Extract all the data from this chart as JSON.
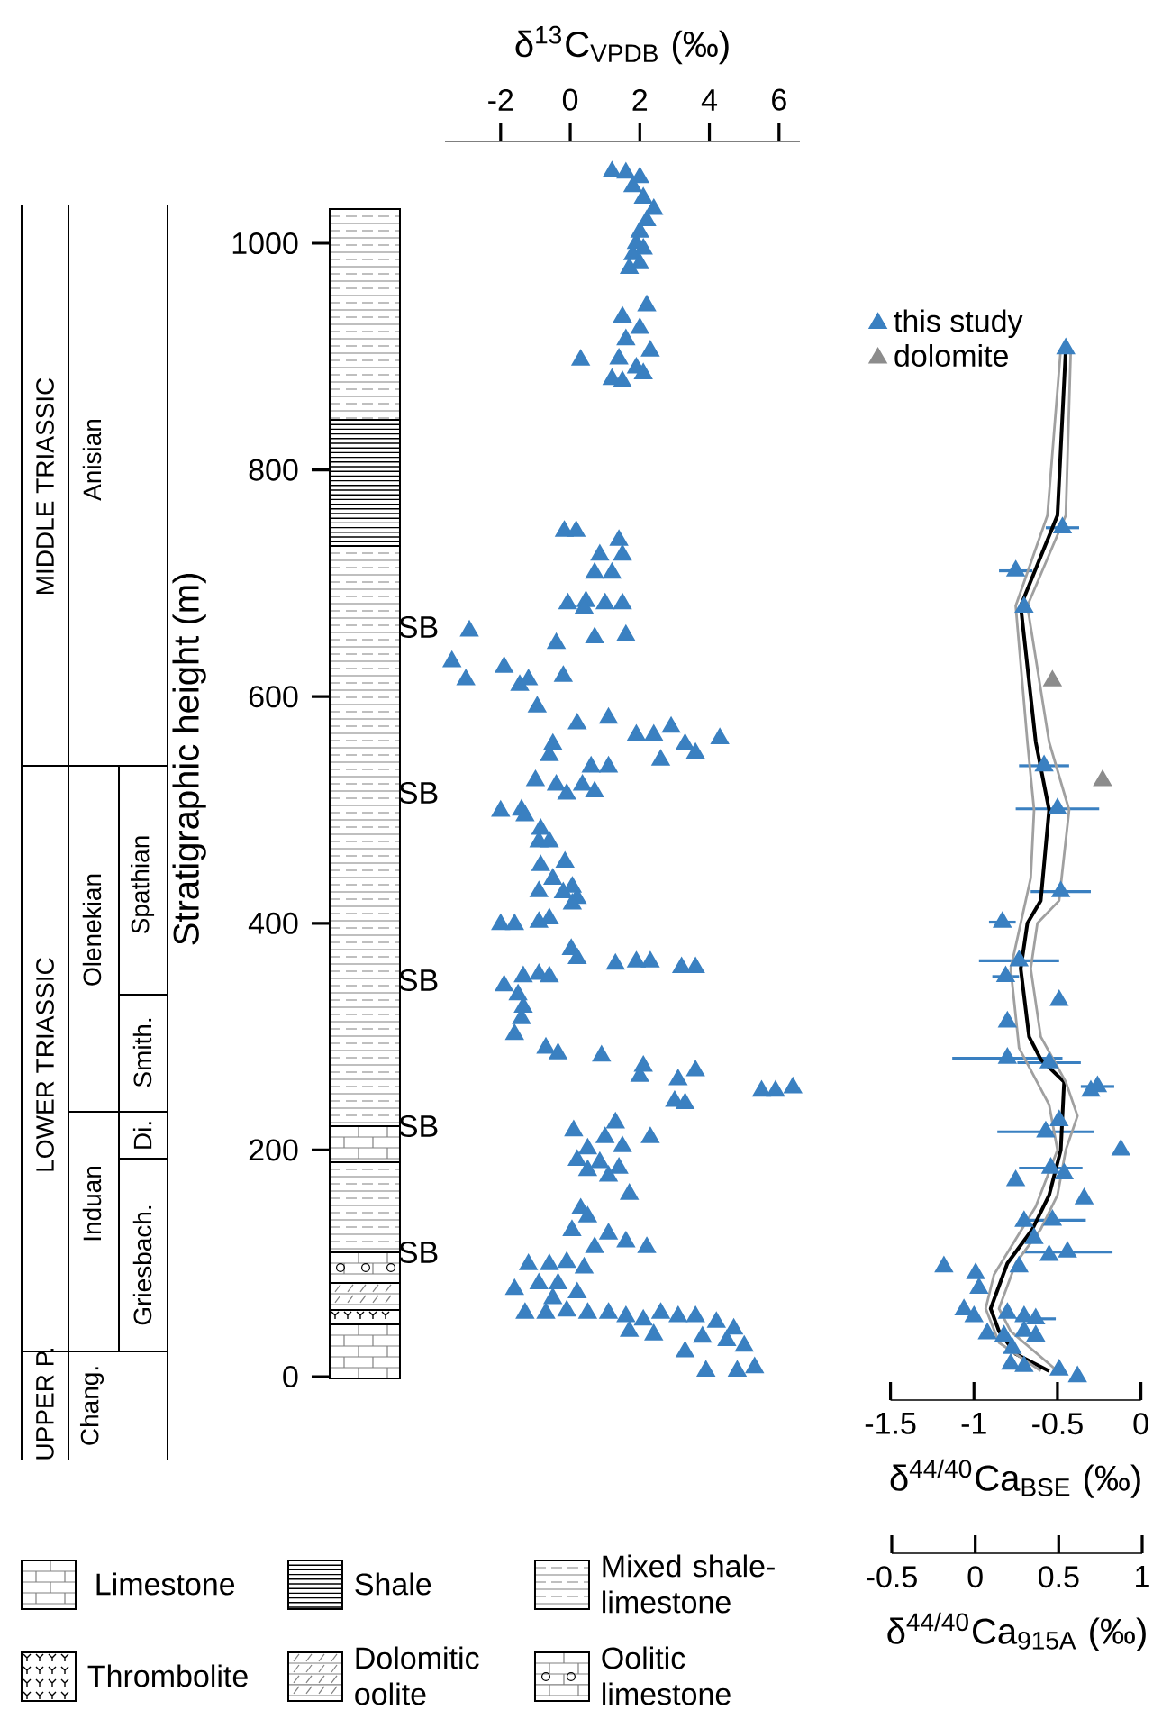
{
  "chart_data": [
    {
      "type": "scatter",
      "xlabel": "δ$^{13}$C$_{VPDB}$ (‰)",
      "ylabel": "Stratigraphic height (m)",
      "xlim": [
        -3.6,
        6.6
      ],
      "xticks": [
        -2,
        0,
        2,
        4,
        6
      ],
      "ylim": [
        0,
        1090
      ],
      "yticks": [
        0,
        200,
        400,
        600,
        800,
        1000
      ],
      "marker": "triangle",
      "series": [
        {
          "color": "#3a80c1",
          "x": [
            1.2,
            1.6,
            2.0,
            1.8,
            2.1,
            2.4,
            2.2,
            2.0,
            1.9,
            2.1,
            1.8,
            2.0,
            1.7,
            2.2,
            1.5,
            2.0,
            1.6,
            2.3,
            1.4,
            0.3,
            1.9,
            1.2,
            2.1,
            1.5,
            -0.17,
            0.17,
            1.4,
            0.85,
            1.5,
            0.7,
            1.2,
            -0.07,
            0.45,
            1.0,
            1.5,
            0.4,
            -0.4,
            0.7,
            1.6,
            -2.9,
            -3.4,
            -3.0,
            -1.9,
            -1.45,
            -1.2,
            -0.95,
            -0.2,
            1.1,
            0.2,
            1.9,
            2.4,
            2.9,
            3.3,
            4.3,
            -0.5,
            3.6,
            2.6,
            -0.6,
            -1.0,
            -0.4,
            0.35,
            0.6,
            1.1,
            -0.1,
            0.7,
            -2.0,
            -1.4,
            -1.3,
            -0.85,
            -0.9,
            -0.6,
            -0.85,
            -0.15,
            -0.5,
            0.06,
            -0.9,
            -0.2,
            0.2,
            0.06,
            -2.0,
            -1.6,
            -0.9,
            -0.6,
            0.03,
            0.2,
            1.3,
            1.9,
            2.3,
            3.2,
            3.6,
            -1.9,
            -1.35,
            -0.9,
            -0.6,
            -1.5,
            -1.35,
            -1.4,
            -1.6,
            -0.7,
            -0.35,
            0.9,
            2.1,
            2.0,
            3.1,
            3.6,
            5.5,
            5.9,
            6.4,
            3.0,
            3.3,
            1.3,
            2.3,
            0.1,
            1.0,
            1.5,
            0.5,
            0.2,
            0.85,
            1.4,
            0.5,
            1.1,
            1.7,
            0.3,
            0.5,
            0.05,
            1.1,
            1.6,
            2.2,
            0.7,
            -1.2,
            -0.6,
            -0.1,
            0.4,
            -1.6,
            -0.9,
            -0.35,
            -0.5,
            0.2,
            -1.3,
            -0.7,
            -0.1,
            0.5,
            1.1,
            1.6,
            2.1,
            2.6,
            3.1,
            3.6,
            4.2,
            4.7,
            3.8,
            4.5,
            5.0,
            5.3,
            3.9,
            4.8,
            3.3,
            1.7,
            2.4
          ],
          "values": [
            1063,
            1062,
            1058,
            1050,
            1040,
            1030,
            1020,
            1010,
            1000,
            995,
            990,
            982,
            978,
            945,
            935,
            925,
            915,
            905,
            898,
            897,
            890,
            880,
            885,
            878,
            746,
            746,
            738,
            725,
            725,
            709,
            709,
            682,
            684,
            682,
            682,
            678,
            647,
            652,
            654,
            658,
            631,
            615,
            626,
            610,
            615,
            591,
            618,
            581,
            576,
            566,
            566,
            573,
            558,
            563,
            558,
            550,
            544,
            548,
            526,
            522,
            522,
            538,
            538,
            514,
            516,
            499,
            500,
            495,
            483,
            472,
            472,
            451,
            454,
            439,
            432,
            428,
            427,
            422,
            417,
            399,
            399,
            401,
            404,
            377,
            369,
            364,
            366,
            366,
            361,
            361,
            345,
            353,
            355,
            353,
            337,
            326,
            316,
            302,
            290,
            285,
            283,
            274,
            265,
            262,
            270,
            252,
            252,
            255,
            243,
            241,
            224,
            211,
            217,
            211,
            203,
            201,
            191,
            189,
            184,
            182,
            177,
            161,
            148,
            141,
            129,
            126,
            119,
            114,
            114,
            99,
            99,
            101,
            96,
            77,
            82,
            82,
            69,
            74,
            56,
            56,
            58,
            56,
            56,
            53,
            50,
            56,
            53,
            53,
            48,
            42,
            35,
            32,
            27,
            8,
            5,
            5,
            22,
            40,
            37
          ]
        }
      ],
      "annotations": [
        "MIDDLE TRIASSIC",
        "LOWER TRIASSIC",
        "UPPER P.",
        "Anisian",
        "Olenekian",
        "Induan",
        "Chang.",
        "Spathian",
        "Smith.",
        "Di.",
        "Griesbach.",
        "Limestone",
        "Shale",
        "Mixed shale-limestone",
        "Thrombolite",
        "Dolomitic oolite",
        "Oolitic limestone",
        "SB",
        "SB",
        "SB",
        "SB",
        "SB"
      ]
    },
    {
      "type": "scatter",
      "xlabel": "δ$^{44/40}$Ca$_{BSE}$ (‰)",
      "x2label": "δ$^{44/40}$Ca$_{915A}$ (‰)",
      "xlim": [
        -1.5,
        0
      ],
      "xticks": [
        -1.5,
        -1,
        -0.5,
        0
      ],
      "x2lim": [
        -0.5,
        1
      ],
      "x2ticks": [
        -0.5,
        0,
        0.5,
        1
      ],
      "ylim": [
        0,
        1000
      ],
      "yticks": [
        0,
        200,
        400,
        600,
        800,
        1000
      ],
      "tick_labels": "x",
      "legend": "top left",
      "marker": "triangle",
      "series": [
        {
          "name": "this study",
          "color": "#3a80c1",
          "x": [
            -0.45,
            -0.47,
            -0.75,
            -0.7,
            -0.58,
            -0.5,
            -0.48,
            -0.83,
            -0.73,
            -0.81,
            -0.49,
            -0.8,
            -0.8,
            -0.55,
            -0.26,
            -0.3,
            -0.49,
            -0.57,
            -0.12,
            -0.54,
            -0.46,
            -0.75,
            -0.34,
            -0.53,
            -0.7,
            -0.64,
            -0.55,
            -0.44,
            -0.73,
            -1.18,
            -0.99,
            -0.97,
            -1.06,
            -1.0,
            -0.92,
            -0.8,
            -0.7,
            -0.63,
            -0.82,
            -0.7,
            -0.63,
            -0.77,
            -0.78,
            -0.7,
            -0.49,
            -0.38
          ],
          "values": [
            907,
            749,
            711,
            679,
            539,
            501,
            428,
            401,
            367,
            353,
            332,
            313,
            281,
            277,
            256,
            252,
            226,
            216,
            200,
            184,
            179,
            173,
            157,
            138,
            137,
            122,
            107,
            110,
            97,
            97,
            91,
            78,
            59,
            53,
            38,
            56,
            53,
            51,
            36,
            40,
            36,
            25,
            11,
            9,
            6,
            0
          ],
          "xerrors": [
            0.03,
            0.1,
            0.1,
            null,
            0.15,
            0.25,
            0.18,
            0.08,
            0.24,
            0.08,
            null,
            null,
            0.33,
            0.19,
            0.1,
            null,
            null,
            0.29,
            null,
            0.19,
            null,
            null,
            null,
            0.2,
            null,
            null,
            null,
            0.27,
            null,
            null,
            null,
            null,
            null,
            null,
            null,
            null,
            null,
            0.12,
            null,
            null,
            null,
            null,
            null,
            null,
            null,
            null
          ]
        },
        {
          "name": "dolomite",
          "color": "#8c8c8c",
          "x": [
            -0.53,
            -0.23
          ],
          "values": [
            614,
            526
          ]
        },
        {
          "type": "line",
          "marker": "none",
          "color": "#000000",
          "x": [
            -0.45,
            -0.5,
            -0.72,
            -0.63,
            -0.55,
            -0.6,
            -0.68,
            -0.72,
            -0.67,
            -0.6,
            -0.46,
            -0.48,
            -0.55,
            -0.65,
            -0.8,
            -0.9,
            -0.85,
            -0.75,
            -0.55
          ],
          "values": [
            907,
            760,
            680,
            560,
            500,
            420,
            400,
            360,
            300,
            280,
            260,
            200,
            160,
            130,
            100,
            60,
            40,
            20,
            5
          ]
        },
        {
          "type": "line",
          "marker": "none",
          "color": "#a0a0a0",
          "x": [
            -0.48,
            -0.56,
            -0.75,
            -0.68,
            -0.64,
            -0.66,
            -0.72,
            -0.78,
            -0.73,
            -0.55,
            -0.5,
            -0.63,
            -0.88,
            -0.93,
            -0.85,
            -0.6
          ],
          "values": [
            907,
            760,
            680,
            560,
            500,
            440,
            400,
            360,
            290,
            240,
            200,
            150,
            90,
            60,
            30,
            5
          ]
        },
        {
          "type": "line",
          "marker": "none",
          "color": "#a0a0a0",
          "x": [
            -0.42,
            -0.45,
            -0.68,
            -0.55,
            -0.43,
            -0.49,
            -0.62,
            -0.66,
            -0.6,
            -0.45,
            -0.38,
            -0.45,
            -0.5,
            -0.6,
            -0.75,
            -0.85,
            -0.78,
            -0.5
          ],
          "values": [
            907,
            760,
            680,
            560,
            500,
            420,
            400,
            360,
            300,
            260,
            230,
            200,
            160,
            130,
            100,
            60,
            40,
            5
          ]
        }
      ]
    }
  ]
}
